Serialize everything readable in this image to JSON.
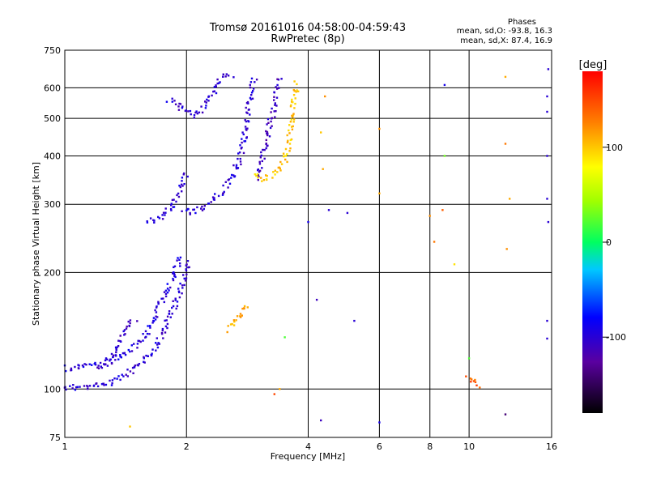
{
  "chart_data": {
    "type": "scatter",
    "title": "Tromsø 20161016 04:58:00-04:59:43",
    "subtitle": "RwPretec (8p)",
    "xlabel": "Frequency [MHz]",
    "ylabel": "Stationary phase Virtual Height [km]",
    "xscale": "log",
    "yscale": "log",
    "xlim": [
      1,
      16
    ],
    "ylim": [
      75,
      750
    ],
    "xticks": [
      1,
      2,
      4,
      6,
      8,
      10,
      16
    ],
    "yticks": [
      75,
      100,
      200,
      300,
      400,
      500,
      600,
      750
    ],
    "grid": true,
    "colorbar": {
      "label": "[deg]",
      "range": [
        -180,
        180
      ],
      "ticks": [
        100,
        0,
        -100
      ]
    },
    "stats": {
      "heading": "Phases",
      "o_line": "mean, sd,O: -93.8, 16.3",
      "x_line": "mean, sd,X:  87.4, 16.9"
    },
    "traces": [
      {
        "phase": -100,
        "points": [
          [
            1.0,
            101
          ],
          [
            1.1,
            101
          ],
          [
            1.2,
            102
          ],
          [
            1.3,
            104
          ],
          [
            1.4,
            108
          ],
          [
            1.5,
            113
          ],
          [
            1.6,
            120
          ],
          [
            1.7,
            132
          ],
          [
            1.8,
            150
          ],
          [
            1.9,
            172
          ],
          [
            2.0,
            200
          ],
          [
            2.05,
            215
          ]
        ]
      },
      {
        "phase": -95,
        "points": [
          [
            1.0,
            113
          ],
          [
            1.1,
            114
          ],
          [
            1.25,
            117
          ],
          [
            1.35,
            121
          ],
          [
            1.45,
            125
          ],
          [
            1.55,
            133
          ],
          [
            1.65,
            150
          ],
          [
            1.75,
            172
          ],
          [
            1.85,
            195
          ],
          [
            1.95,
            220
          ]
        ]
      },
      {
        "phase": -105,
        "points": [
          [
            1.2,
            112
          ],
          [
            1.3,
            118
          ],
          [
            1.35,
            128
          ],
          [
            1.4,
            140
          ],
          [
            1.45,
            148
          ],
          [
            1.5,
            150
          ]
        ]
      },
      {
        "phase": -100,
        "points": [
          [
            1.95,
            290
          ],
          [
            2.05,
            285
          ],
          [
            2.2,
            295
          ],
          [
            2.35,
            312
          ],
          [
            2.5,
            330
          ],
          [
            2.6,
            355
          ],
          [
            2.7,
            390
          ],
          [
            2.75,
            420
          ],
          [
            2.8,
            470
          ],
          [
            2.85,
            530
          ],
          [
            2.9,
            590
          ],
          [
            2.95,
            640
          ]
        ]
      },
      {
        "phase": -100,
        "points": [
          [
            1.6,
            270
          ],
          [
            1.75,
            280
          ],
          [
            1.85,
            300
          ],
          [
            1.95,
            330
          ],
          [
            2.0,
            360
          ]
        ]
      },
      {
        "phase": -100,
        "points": [
          [
            1.8,
            560
          ],
          [
            1.9,
            540
          ],
          [
            2.0,
            520
          ],
          [
            2.1,
            510
          ],
          [
            2.2,
            530
          ],
          [
            2.3,
            570
          ],
          [
            2.45,
            640
          ],
          [
            2.6,
            650
          ]
        ]
      },
      {
        "phase": -110,
        "points": [
          [
            3.0,
            350
          ],
          [
            3.1,
            400
          ],
          [
            3.2,
            470
          ],
          [
            3.3,
            540
          ],
          [
            3.35,
            590
          ],
          [
            3.4,
            640
          ]
        ]
      },
      {
        "phase": 100,
        "points": [
          [
            2.95,
            360
          ],
          [
            3.1,
            345
          ],
          [
            3.3,
            360
          ],
          [
            3.5,
            390
          ],
          [
            3.6,
            440
          ],
          [
            3.65,
            500
          ],
          [
            3.7,
            560
          ],
          [
            3.75,
            620
          ]
        ]
      },
      {
        "phase": 110,
        "points": [
          [
            2.55,
            142
          ],
          [
            2.7,
            155
          ],
          [
            2.85,
            165
          ]
        ]
      },
      {
        "phase": 140,
        "points": [
          [
            9.9,
            106
          ],
          [
            10.3,
            104
          ],
          [
            10.8,
            102
          ]
        ]
      }
    ],
    "scatter": [
      {
        "x": 1.45,
        "y": 80,
        "phase": 100
      },
      {
        "x": 4.3,
        "y": 83,
        "phase": -110
      },
      {
        "x": 6.0,
        "y": 82,
        "phase": -90
      },
      {
        "x": 12.3,
        "y": 86,
        "phase": -140
      },
      {
        "x": 4.0,
        "y": 270,
        "phase": -90
      },
      {
        "x": 4.5,
        "y": 290,
        "phase": -100
      },
      {
        "x": 5.0,
        "y": 285,
        "phase": -100
      },
      {
        "x": 4.2,
        "y": 170,
        "phase": -110
      },
      {
        "x": 5.2,
        "y": 150,
        "phase": -100
      },
      {
        "x": 4.4,
        "y": 570,
        "phase": 120
      },
      {
        "x": 4.3,
        "y": 460,
        "phase": 100
      },
      {
        "x": 4.35,
        "y": 370,
        "phase": 110
      },
      {
        "x": 6.0,
        "y": 470,
        "phase": 120
      },
      {
        "x": 6.0,
        "y": 320,
        "phase": 110
      },
      {
        "x": 8.0,
        "y": 280,
        "phase": 120
      },
      {
        "x": 8.2,
        "y": 240,
        "phase": 130
      },
      {
        "x": 8.6,
        "y": 290,
        "phase": 140
      },
      {
        "x": 9.2,
        "y": 210,
        "phase": 90
      },
      {
        "x": 8.7,
        "y": 610,
        "phase": -90
      },
      {
        "x": 8.7,
        "y": 400,
        "phase": 30
      },
      {
        "x": 10.0,
        "y": 120,
        "phase": 20
      },
      {
        "x": 12.3,
        "y": 640,
        "phase": 110
      },
      {
        "x": 12.3,
        "y": 430,
        "phase": 130
      },
      {
        "x": 12.6,
        "y": 310,
        "phase": 110
      },
      {
        "x": 12.4,
        "y": 230,
        "phase": 120
      },
      {
        "x": 15.7,
        "y": 670,
        "phase": -100
      },
      {
        "x": 15.6,
        "y": 570,
        "phase": -100
      },
      {
        "x": 15.6,
        "y": 520,
        "phase": -100
      },
      {
        "x": 15.6,
        "y": 400,
        "phase": -100
      },
      {
        "x": 15.6,
        "y": 310,
        "phase": -100
      },
      {
        "x": 15.7,
        "y": 270,
        "phase": -100
      },
      {
        "x": 15.6,
        "y": 150,
        "phase": -100
      },
      {
        "x": 15.6,
        "y": 135,
        "phase": -100
      },
      {
        "x": 3.3,
        "y": 97,
        "phase": 150
      },
      {
        "x": 3.4,
        "y": 100,
        "phase": 110
      },
      {
        "x": 3.5,
        "y": 136,
        "phase": 20
      }
    ]
  }
}
